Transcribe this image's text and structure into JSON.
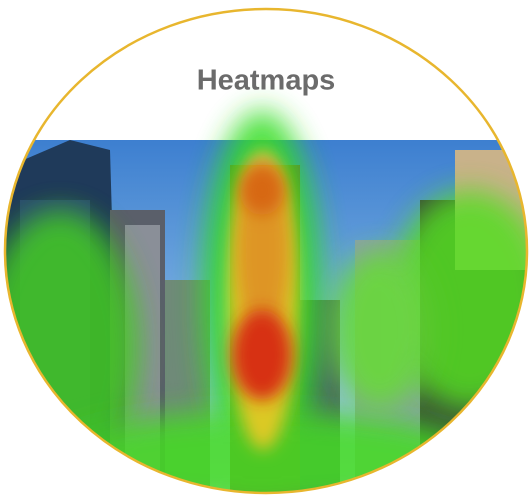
{
  "title": "Heatmaps"
}
